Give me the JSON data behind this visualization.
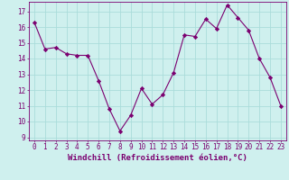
{
  "x": [
    0,
    1,
    2,
    3,
    4,
    5,
    6,
    7,
    8,
    9,
    10,
    11,
    12,
    13,
    14,
    15,
    16,
    17,
    18,
    19,
    20,
    21,
    22,
    23
  ],
  "y": [
    16.3,
    14.6,
    14.7,
    14.3,
    14.2,
    14.2,
    12.6,
    10.8,
    9.4,
    10.4,
    12.1,
    11.1,
    11.7,
    13.1,
    15.5,
    15.4,
    16.5,
    15.9,
    17.4,
    16.6,
    15.8,
    14.0,
    12.8,
    11.0
  ],
  "line_color": "#7B0070",
  "marker": "D",
  "marker_size": 2.2,
  "bg_color": "#cff0ee",
  "grid_color": "#aadcda",
  "xlabel": "Windchill (Refroidissement éolien,°C)",
  "xlabel_color": "#7B0070",
  "ylim": [
    8.8,
    17.6
  ],
  "yticks": [
    9,
    10,
    11,
    12,
    13,
    14,
    15,
    16,
    17
  ],
  "xticks": [
    0,
    1,
    2,
    3,
    4,
    5,
    6,
    7,
    8,
    9,
    10,
    11,
    12,
    13,
    14,
    15,
    16,
    17,
    18,
    19,
    20,
    21,
    22,
    23
  ],
  "tick_color": "#7B0070",
  "tick_fontsize": 5.5,
  "xlabel_fontsize": 6.5,
  "spine_color": "#7B0070"
}
